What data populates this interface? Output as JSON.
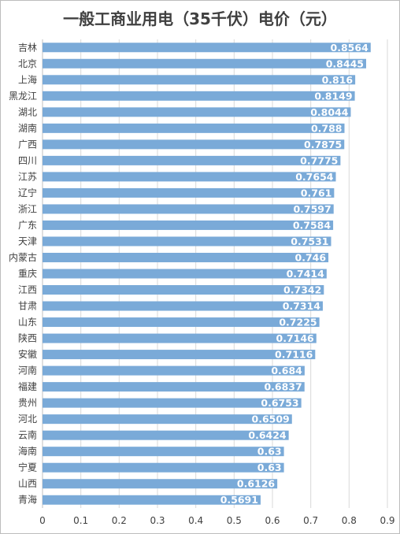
{
  "chart_data": {
    "type": "bar",
    "orientation": "horizontal",
    "title": "一般工商业用电（35千伏）电价（元）",
    "categories": [
      "吉林",
      "北京",
      "上海",
      "黑龙江",
      "湖北",
      "湖南",
      "广西",
      "四川",
      "江苏",
      "辽宁",
      "浙江",
      "广东",
      "天津",
      "内蒙古",
      "重庆",
      "江西",
      "甘肃",
      "山东",
      "陕西",
      "安徽",
      "河南",
      "福建",
      "贵州",
      "河北",
      "云南",
      "海南",
      "宁夏",
      "山西",
      "青海"
    ],
    "values": [
      0.8564,
      0.8445,
      0.816,
      0.8149,
      0.8044,
      0.788,
      0.7875,
      0.7775,
      0.7654,
      0.761,
      0.7597,
      0.7584,
      0.7531,
      0.746,
      0.7414,
      0.7342,
      0.7314,
      0.7225,
      0.7146,
      0.7116,
      0.684,
      0.6837,
      0.6753,
      0.6509,
      0.6424,
      0.63,
      0.63,
      0.6126,
      0.5691
    ],
    "value_labels": [
      "0.8564",
      "0.8445",
      "0.816",
      "0.8149",
      "0.8044",
      "0.788",
      "0.7875",
      "0.7775",
      "0.7654",
      "0.761",
      "0.7597",
      "0.7584",
      "0.7531",
      "0.746",
      "0.7414",
      "0.7342",
      "0.7314",
      "0.7225",
      "0.7146",
      "0.7116",
      "0.684",
      "0.6837",
      "0.6753",
      "0.6509",
      "0.6424",
      "0.63",
      "0.63",
      "0.6126",
      "0.5691"
    ],
    "xlim": [
      0,
      0.9
    ],
    "x_ticks": [
      "0",
      "0.1",
      "0.2",
      "0.3",
      "0.4",
      "0.5",
      "0.6",
      "0.7",
      "0.8",
      "0.9"
    ],
    "bar_color": "#7aaad8",
    "label_color": "#ffffff",
    "grid": "vertical"
  }
}
